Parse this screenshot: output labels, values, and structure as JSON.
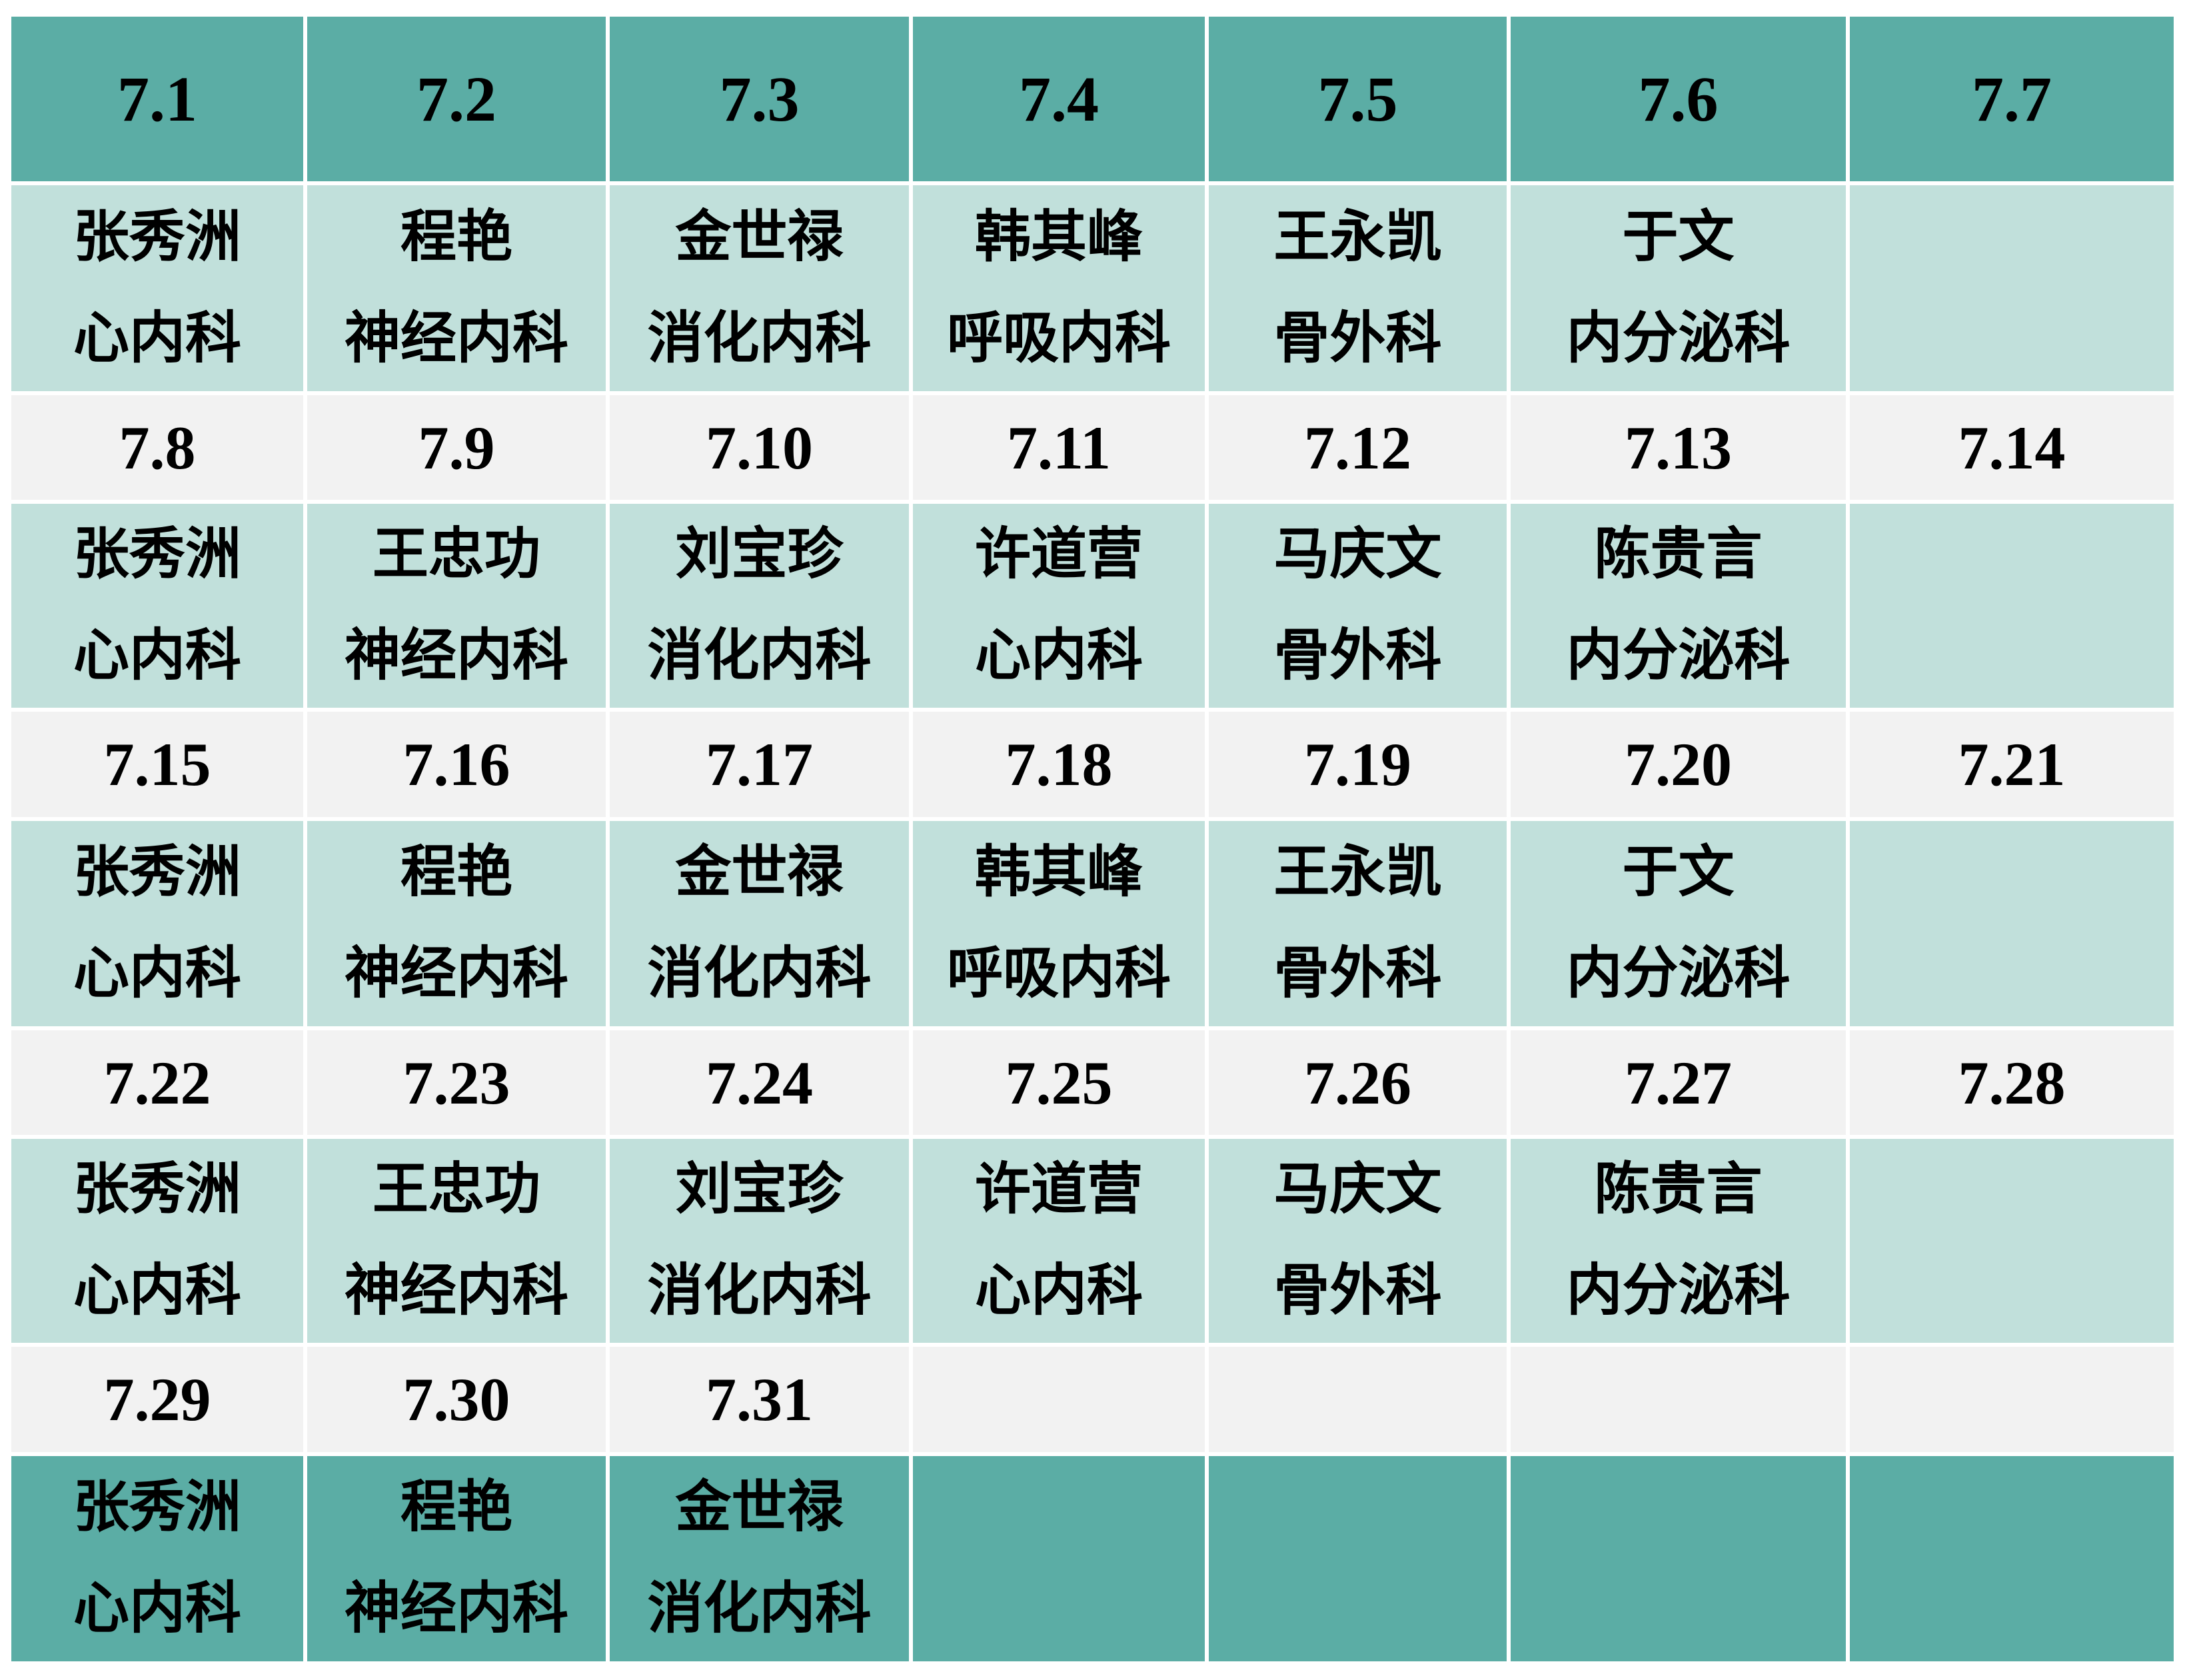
{
  "colors": {
    "header": "#5bada5",
    "duty": "#c1e0db",
    "date_row": "#f2f2f2"
  },
  "weeks": [
    {
      "dates": [
        "7.1",
        "7.2",
        "7.3",
        "7.4",
        "7.5",
        "7.6",
        "7.7"
      ],
      "duty": [
        {
          "name": "张秀洲",
          "dept": "心内科"
        },
        {
          "name": "程艳",
          "dept": "神经内科"
        },
        {
          "name": "金世禄",
          "dept": "消化内科"
        },
        {
          "name": "韩其峰",
          "dept": "呼吸内科"
        },
        {
          "name": "王永凯",
          "dept": "骨外科"
        },
        {
          "name": "于文",
          "dept": "内分泌科"
        },
        {
          "name": "",
          "dept": ""
        }
      ]
    },
    {
      "dates": [
        "7.8",
        "7.9",
        "7.10",
        "7.11",
        "7.12",
        "7.13",
        "7.14"
      ],
      "duty": [
        {
          "name": "张秀洲",
          "dept": "心内科"
        },
        {
          "name": "王忠功",
          "dept": "神经内科"
        },
        {
          "name": "刘宝珍",
          "dept": "消化内科"
        },
        {
          "name": "许道营",
          "dept": "心内科"
        },
        {
          "name": "马庆文",
          "dept": "骨外科"
        },
        {
          "name": "陈贵言",
          "dept": "内分泌科"
        },
        {
          "name": "",
          "dept": ""
        }
      ]
    },
    {
      "dates": [
        "7.15",
        "7.16",
        "7.17",
        "7.18",
        "7.19",
        "7.20",
        "7.21"
      ],
      "duty": [
        {
          "name": "张秀洲",
          "dept": "心内科"
        },
        {
          "name": "程艳",
          "dept": "神经内科"
        },
        {
          "name": "金世禄",
          "dept": "消化内科"
        },
        {
          "name": "韩其峰",
          "dept": "呼吸内科"
        },
        {
          "name": "王永凯",
          "dept": "骨外科"
        },
        {
          "name": "于文",
          "dept": "内分泌科"
        },
        {
          "name": "",
          "dept": ""
        }
      ]
    },
    {
      "dates": [
        "7.22",
        "7.23",
        "7.24",
        "7.25",
        "7.26",
        "7.27",
        "7.28"
      ],
      "duty": [
        {
          "name": "张秀洲",
          "dept": "心内科"
        },
        {
          "name": "王忠功",
          "dept": "神经内科"
        },
        {
          "name": "刘宝珍",
          "dept": "消化内科"
        },
        {
          "name": "许道营",
          "dept": "心内科"
        },
        {
          "name": "马庆文",
          "dept": "骨外科"
        },
        {
          "name": "陈贵言",
          "dept": "内分泌科"
        },
        {
          "name": "",
          "dept": ""
        }
      ]
    },
    {
      "dates": [
        "7.29",
        "7.30",
        "7.31",
        "",
        "",
        "",
        ""
      ],
      "duty": [
        {
          "name": "张秀洲",
          "dept": "心内科"
        },
        {
          "name": "程艳",
          "dept": "神经内科"
        },
        {
          "name": "金世禄",
          "dept": "消化内科"
        },
        {
          "name": "",
          "dept": ""
        },
        {
          "name": "",
          "dept": ""
        },
        {
          "name": "",
          "dept": ""
        },
        {
          "name": "",
          "dept": ""
        }
      ]
    }
  ]
}
